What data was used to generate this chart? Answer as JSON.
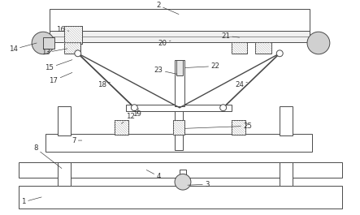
{
  "bg": "#ffffff",
  "lc": "#4a4a4a",
  "hc": "#999999",
  "tc": "#333333",
  "figsize": [
    4.43,
    2.65
  ],
  "dpi": 100,
  "lw": 0.7,
  "fs": 6.2
}
